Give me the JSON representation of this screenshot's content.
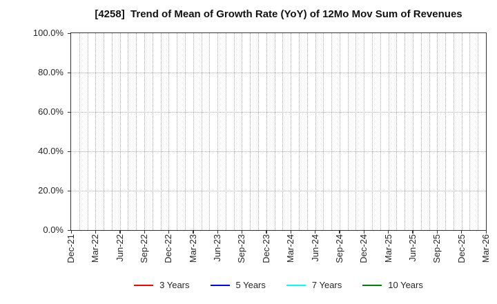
{
  "chart_data": {
    "type": "line",
    "title": "[4258]  Trend of Mean of Growth Rate (YoY) of 12Mo Mov Sum of Revenues",
    "xlabel": "",
    "ylabel": "",
    "ylim": [
      0,
      100
    ],
    "y_ticks": [
      0,
      20,
      40,
      60,
      80,
      100
    ],
    "y_tick_labels": [
      "0.0%",
      "20.0%",
      "40.0%",
      "60.0%",
      "80.0%",
      "100.0%"
    ],
    "x_tick_labels": [
      "Dec-21",
      "Mar-22",
      "Jun-22",
      "Sep-22",
      "Dec-22",
      "Mar-23",
      "Jun-23",
      "Sep-23",
      "Dec-23",
      "Mar-24",
      "Jun-24",
      "Sep-24",
      "Dec-24",
      "Mar-25",
      "Jun-25",
      "Sep-25",
      "Dec-25",
      "Mar-26"
    ],
    "x_minor_gridlines_per_interval": 3,
    "grid": {
      "style": "dotted",
      "color": "#a9a9a9",
      "vertical": "monthly",
      "horizontal": "every 20%"
    },
    "legend": {
      "position": "bottom-center",
      "entries": [
        {
          "label": "3 Years",
          "color": "#ff0000"
        },
        {
          "label": "5 Years",
          "color": "#0000ff"
        },
        {
          "label": "7 Years",
          "color": "#00ffff"
        },
        {
          "label": "10 Years",
          "color": "#008000"
        }
      ]
    },
    "series": [
      {
        "name": "3 Years",
        "color": "#ff0000",
        "values": []
      },
      {
        "name": "5 Years",
        "color": "#0000ff",
        "values": []
      },
      {
        "name": "7 Years",
        "color": "#00ffff",
        "values": []
      },
      {
        "name": "10 Years",
        "color": "#008000",
        "values": []
      }
    ]
  }
}
